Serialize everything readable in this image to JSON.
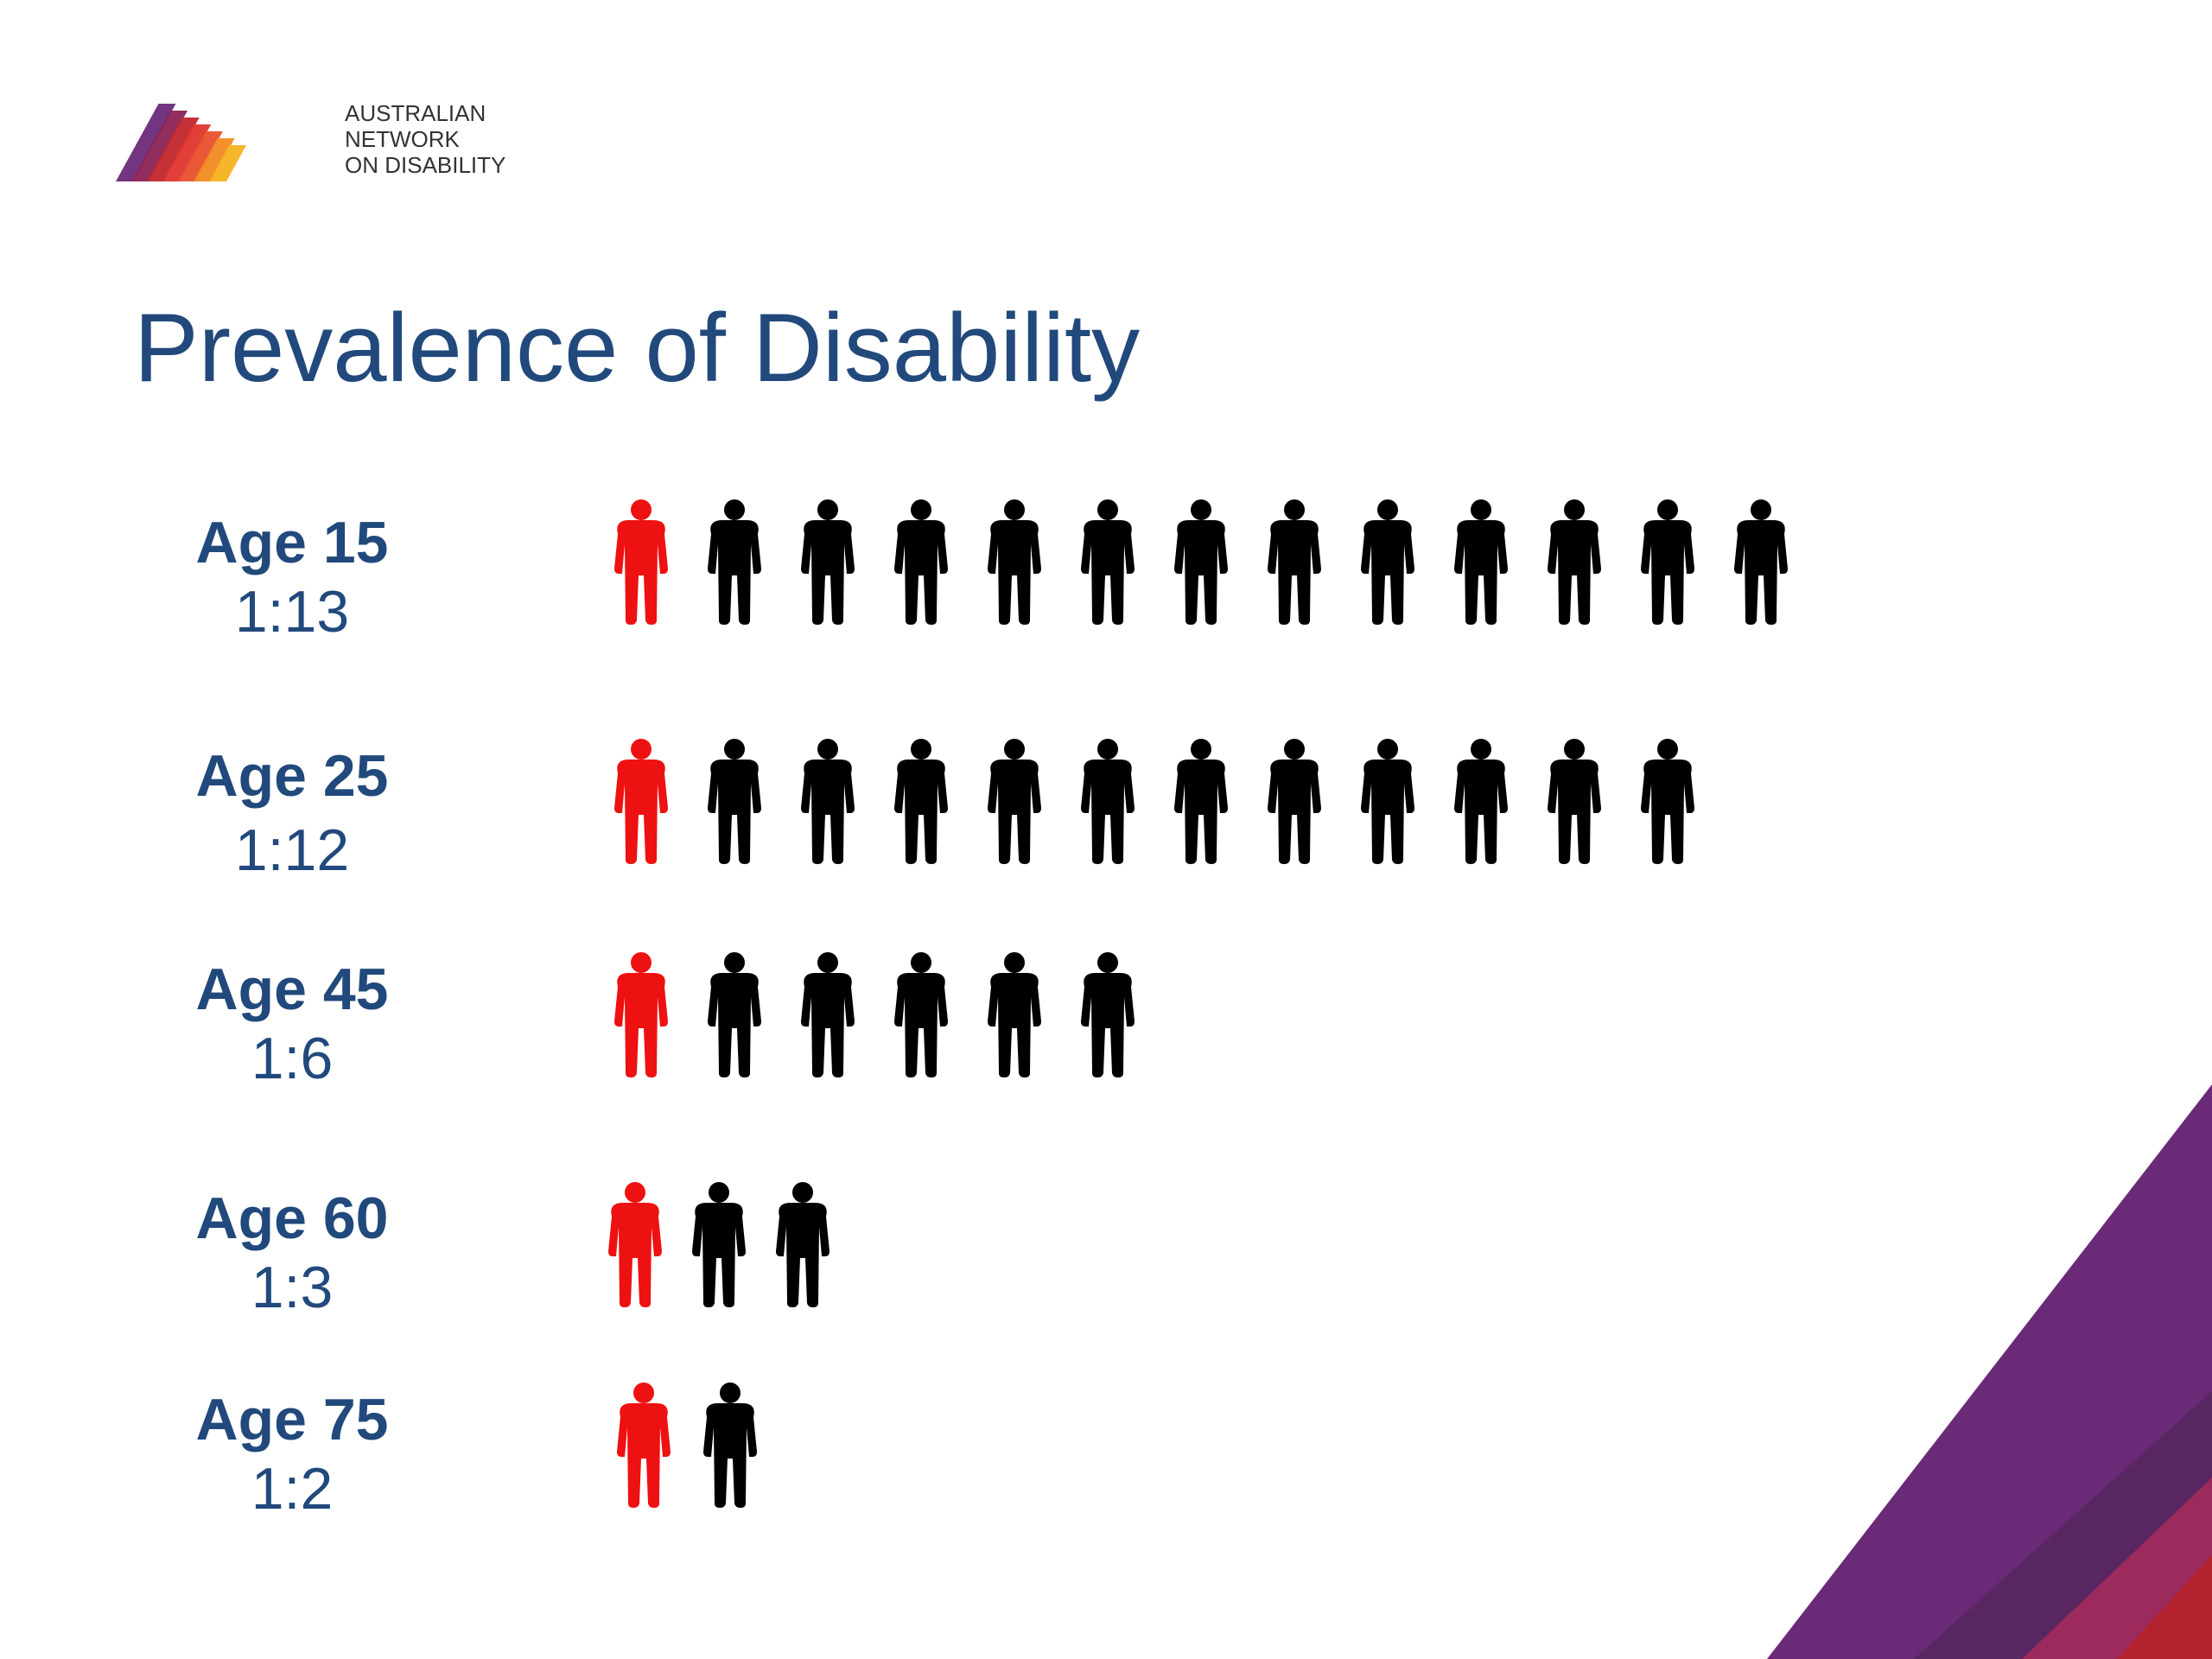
{
  "org": {
    "line1": "AUSTRALIAN",
    "line2": "NETWORK",
    "line3": "ON DISABILITY",
    "logo_colors": [
      "#6b2a78",
      "#8b2354",
      "#c1272d",
      "#e0352e",
      "#e8502c",
      "#f08a22",
      "#f6b221"
    ]
  },
  "title": "Prevalence of Disability",
  "colors": {
    "title": "#21497c",
    "highlight": "#ee1111",
    "default": "#000000",
    "corner_purple": "#6b2a78",
    "corner_dark": "#582660",
    "corner_magenta": "#9c2a5c",
    "corner_red": "#b3222f"
  },
  "chart_data": {
    "type": "pictogram",
    "icon": "person-icon",
    "rows": [
      {
        "age": "Age 15",
        "ratio": "1:13",
        "highlighted": 1,
        "total": 13
      },
      {
        "age": "Age 25",
        "ratio": "1:12",
        "highlighted": 1,
        "total": 12
      },
      {
        "age": "Age 45",
        "ratio": "1:6",
        "highlighted": 1,
        "total": 6
      },
      {
        "age": "Age 60",
        "ratio": "1:3",
        "highlighted": 1,
        "total": 3
      },
      {
        "age": "Age 75",
        "ratio": "1:2",
        "highlighted": 1,
        "total": 2
      }
    ]
  }
}
